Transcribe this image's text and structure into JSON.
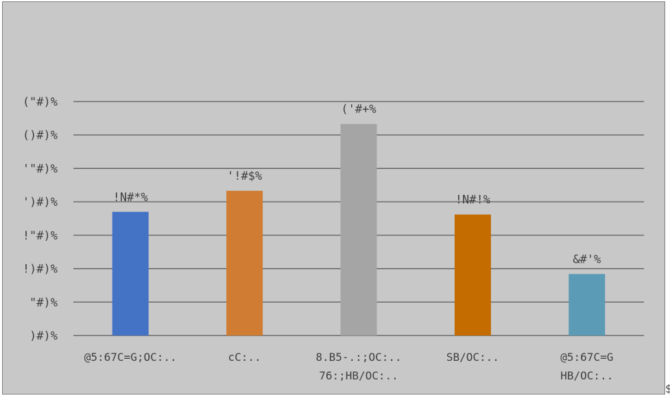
{
  "chart_data": {
    "type": "bar",
    "title": "",
    "xlabel": "",
    "ylabel": "",
    "ylim": [
      0,
      7
    ],
    "grid": true,
    "y_tick_labels": [
      ")#)%",
      "\"#)%",
      "!)#)%",
      "!\"#)%",
      "')#)%",
      "'\"#)%",
      "()#)%",
      "(\"#)%"
    ],
    "categories": [
      [
        "@5:67C=G;OC:.."
      ],
      [
        "cC:.."
      ],
      [
        "8.B5-.:;OC:..",
        "76:;HB/OC:.."
      ],
      [
        "SB/OC:.."
      ],
      [
        "@5:67C=G",
        "HB/OC:.."
      ]
    ],
    "values": [
      3.7,
      4.33,
      6.33,
      3.62,
      1.84
    ],
    "data_labels": [
      "!N#*%",
      "'!#$%",
      "('#+%",
      "!N#!%",
      "&#'%"
    ],
    "colors": [
      "#4472c4",
      "#d07d33",
      "#a5a5a5",
      "#c46c00",
      "#5b9bb5"
    ]
  },
  "corner_mark": "$"
}
